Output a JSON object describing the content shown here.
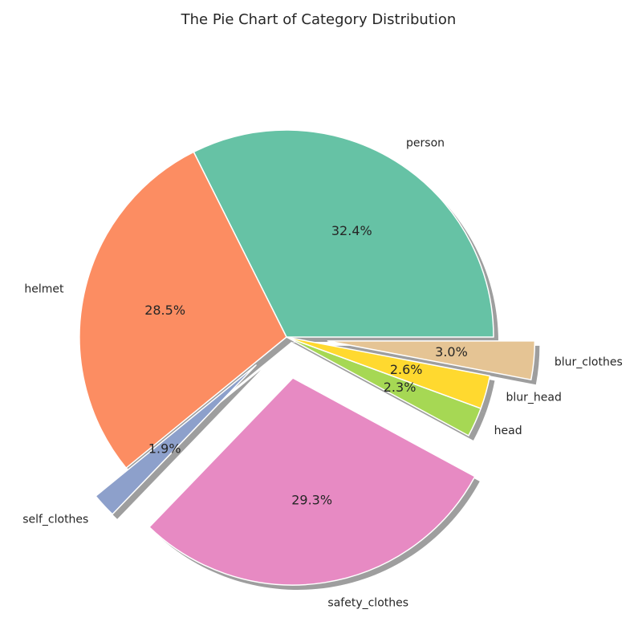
{
  "chart_data": {
    "type": "pie",
    "title": "The Pie Chart of Category Distribution",
    "slices": [
      {
        "label": "person",
        "percent": 32.4,
        "percent_label": "32.4%",
        "color": "#66c2a5",
        "exploded": false
      },
      {
        "label": "helmet",
        "percent": 28.5,
        "percent_label": "28.5%",
        "color": "#fc8d62",
        "exploded": false
      },
      {
        "label": "self_clothes",
        "percent": 1.9,
        "percent_label": "1.9%",
        "color": "#8da0cb",
        "exploded": true
      },
      {
        "label": "safety_clothes",
        "percent": 29.3,
        "percent_label": "29.3%",
        "color": "#e78ac3",
        "exploded": true
      },
      {
        "label": "head",
        "percent": 2.3,
        "percent_label": "2.3%",
        "color": "#a6d854",
        "exploded": false
      },
      {
        "label": "blur_head",
        "percent": 2.6,
        "percent_label": "2.6%",
        "color": "#ffd92f",
        "exploded": false
      },
      {
        "label": "blur_clothes",
        "percent": 3.0,
        "percent_label": "3.0%",
        "color": "#e5c494",
        "exploded": true
      }
    ],
    "start_angle_deg": 0,
    "direction": "counterclockwise",
    "shadow": true,
    "legend": "none"
  }
}
